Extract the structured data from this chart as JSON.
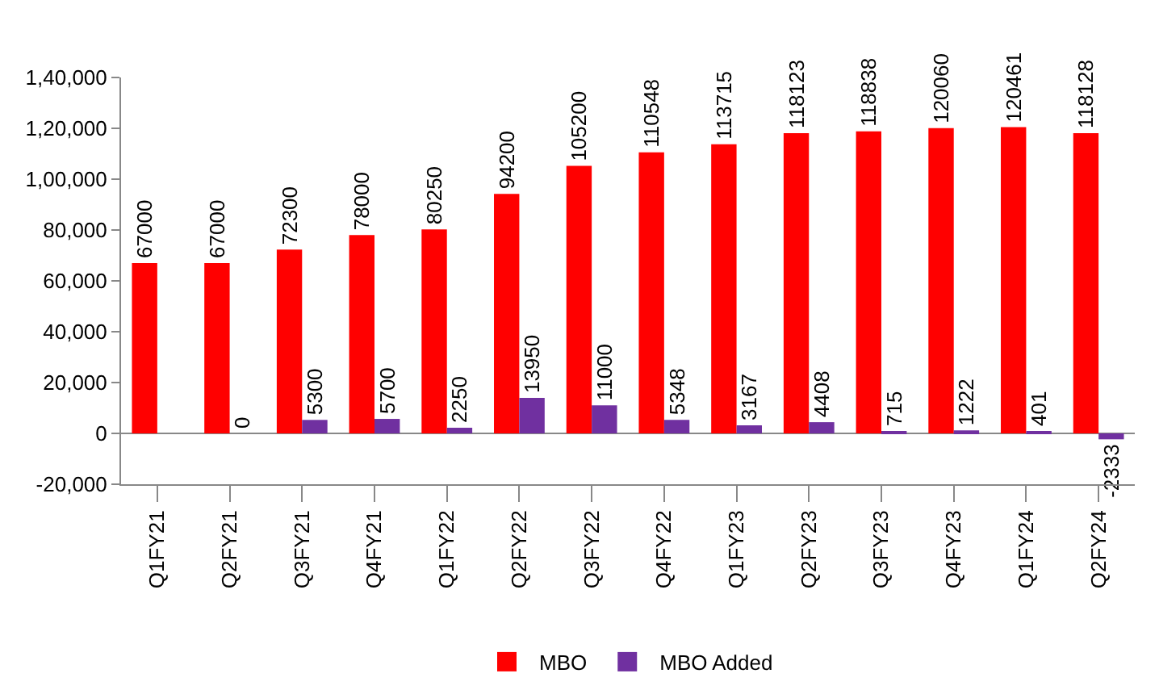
{
  "chart_data": {
    "type": "bar",
    "categories": [
      "Q1FY21",
      "Q2FY21",
      "Q3FY21",
      "Q4FY21",
      "Q1FY22",
      "Q2FY22",
      "Q3FY22",
      "Q4FY22",
      "Q1FY23",
      "Q2FY23",
      "Q3FY23",
      "Q4FY23",
      "Q1FY24",
      "Q2FY24"
    ],
    "series": [
      {
        "name": "MBO",
        "color": "#ff0000",
        "values": [
          67000,
          67000,
          72300,
          78000,
          80250,
          94200,
          105200,
          110548,
          113715,
          118123,
          118838,
          120060,
          120461,
          118128
        ]
      },
      {
        "name": "MBO Added",
        "color": "#7030a0",
        "values": [
          null,
          0,
          5300,
          5700,
          2250,
          13950,
          11000,
          5348,
          3167,
          4408,
          715,
          1222,
          401,
          -2333
        ]
      }
    ],
    "ylim": [
      -20000,
      140000
    ],
    "yticks": [
      {
        "value": -20000,
        "label": "-20,000"
      },
      0,
      {
        "value": 20000,
        "label": "20,000"
      },
      {
        "value": 40000,
        "label": "40,000"
      },
      {
        "value": 60000,
        "label": "60,000"
      },
      {
        "value": 80000,
        "label": "80,000"
      },
      {
        "value": 100000,
        "label": "1,00,000"
      },
      {
        "value": 120000,
        "label": "1,20,000"
      },
      {
        "value": 140000,
        "label": "1,40,000"
      }
    ],
    "data_labels": true,
    "legend": "bottom"
  }
}
